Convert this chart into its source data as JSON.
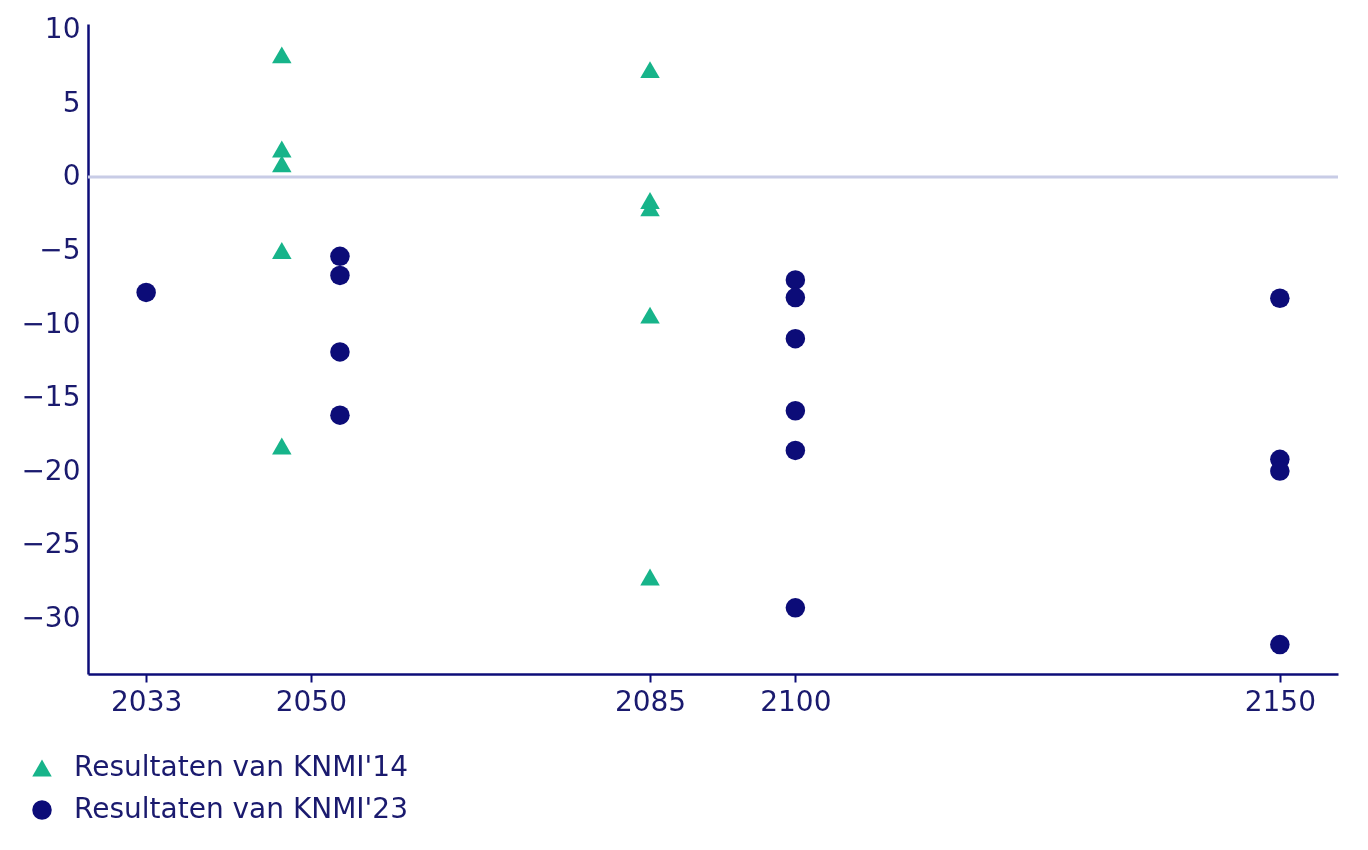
{
  "chart_data": {
    "type": "scatter",
    "xlim": [
      2027,
      2156
    ],
    "xticks": [
      2033,
      2050,
      2085,
      2100,
      2150
    ],
    "ylim": [
      -33.8,
      10.4
    ],
    "yticks": [
      -30,
      -25,
      -20,
      -15,
      -10,
      -5,
      0,
      5,
      10
    ],
    "grid": false,
    "legend": "bottom left",
    "ref_lines": [
      {
        "axis": "y",
        "value": 0,
        "color": "#c8cce6"
      }
    ],
    "series": [
      {
        "name": "Resultaten van KNMI'14",
        "color": "#17b48a",
        "marker": "triangle",
        "x": [
          2047,
          2047,
          2047,
          2047,
          2047,
          2085,
          2085,
          2085,
          2085,
          2085
        ],
        "values": [
          8.3,
          1.9,
          0.9,
          -5.0,
          -18.3,
          7.3,
          -1.6,
          -2.1,
          -9.4,
          -27.2
        ]
      },
      {
        "name": "Resultaten van KNMI'23",
        "color": "#0c0c78",
        "marker": "circle",
        "x": [
          2033,
          2053,
          2053,
          2053,
          2053,
          2100,
          2100,
          2100,
          2100,
          2100,
          2100,
          2150,
          2150,
          2150,
          2150
        ],
        "values": [
          -7.85,
          -5.4,
          -6.7,
          -11.9,
          -16.2,
          -7.0,
          -8.2,
          -11.0,
          -15.9,
          -18.6,
          -29.3,
          -8.25,
          -19.2,
          -20.0,
          -31.8
        ]
      }
    ]
  }
}
